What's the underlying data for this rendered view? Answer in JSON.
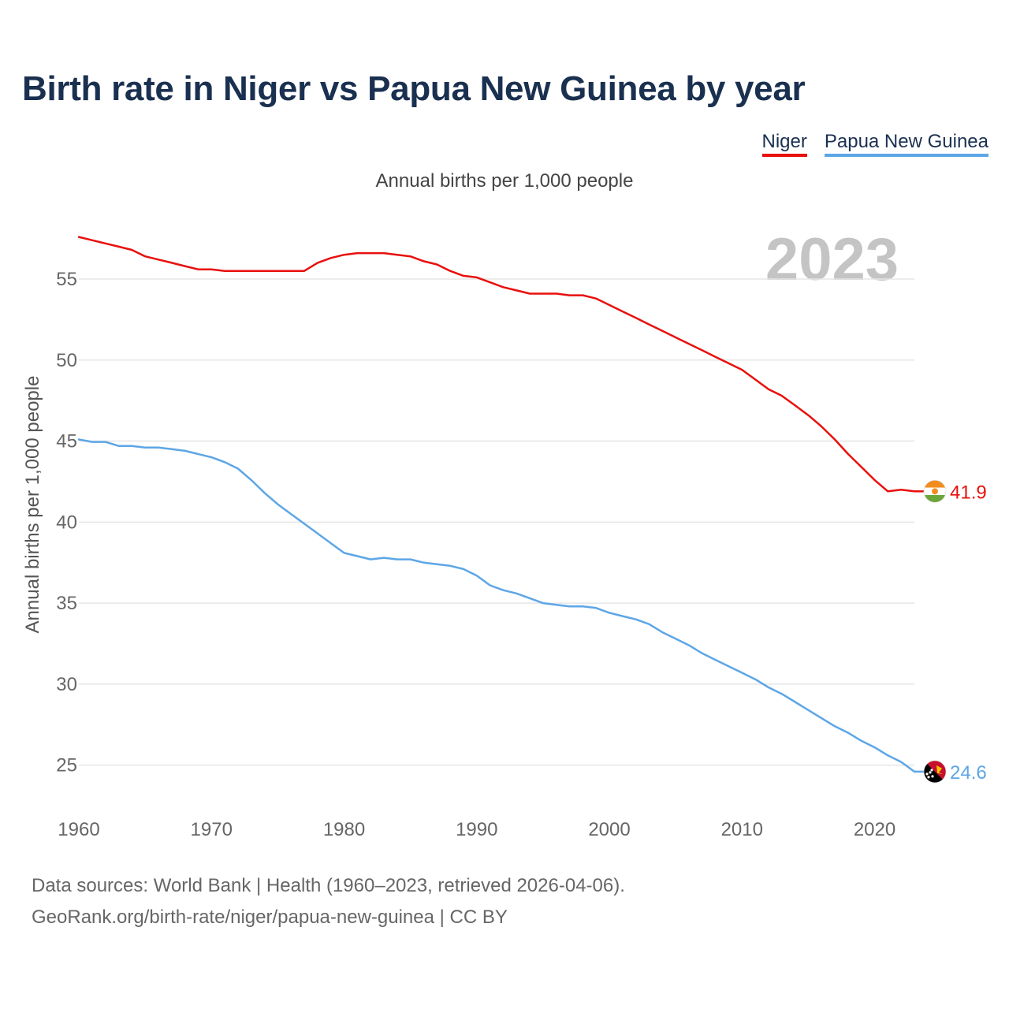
{
  "title": "Birth rate in Niger vs Papua New Guinea by year",
  "subtitle": "Annual births per 1,000 people",
  "year_label": "2023",
  "footer": {
    "line1": "Data sources: World Bank | Health (1960–2023, retrieved 2026-04-06).",
    "line2": "GeoRank.org/birth-rate/niger/papua-new-guinea | CC BY"
  },
  "colors": {
    "niger": "#e8100d",
    "png": "#5da6e6",
    "title": "#1a3050",
    "grid": "#e6e6e6"
  },
  "chart_data": {
    "type": "line",
    "title": "Birth rate in Niger vs Papua New Guinea by year",
    "ylabel": "Annual births per 1,000 people",
    "xlabel": "",
    "xlim": [
      1960,
      2023
    ],
    "ylim": [
      22.6,
      58.6
    ],
    "x_ticks": [
      1960,
      1970,
      1980,
      1990,
      2000,
      2010,
      2020
    ],
    "y_ticks": [
      25,
      30,
      35,
      40,
      45,
      50,
      55
    ],
    "legend_position": "top-right",
    "grid": true,
    "x": [
      1960,
      1961,
      1962,
      1963,
      1964,
      1965,
      1966,
      1967,
      1968,
      1969,
      1970,
      1971,
      1972,
      1973,
      1974,
      1975,
      1976,
      1977,
      1978,
      1979,
      1980,
      1981,
      1982,
      1983,
      1984,
      1985,
      1986,
      1987,
      1988,
      1989,
      1990,
      1991,
      1992,
      1993,
      1994,
      1995,
      1996,
      1997,
      1998,
      1999,
      2000,
      2001,
      2002,
      2003,
      2004,
      2005,
      2006,
      2007,
      2008,
      2009,
      2010,
      2011,
      2012,
      2013,
      2014,
      2015,
      2016,
      2017,
      2018,
      2019,
      2020,
      2021,
      2022,
      2023
    ],
    "series": [
      {
        "name": "Niger",
        "color": "#e8100d",
        "end_label": "41.9",
        "flag": "niger-flag",
        "values": [
          57.6,
          57.4,
          57.2,
          57.0,
          56.8,
          56.4,
          56.2,
          56.0,
          55.8,
          55.6,
          55.6,
          55.5,
          55.5,
          55.5,
          55.5,
          55.5,
          55.5,
          55.5,
          56.0,
          56.3,
          56.5,
          56.6,
          56.6,
          56.6,
          56.5,
          56.4,
          56.1,
          55.9,
          55.5,
          55.2,
          55.1,
          54.8,
          54.5,
          54.3,
          54.1,
          54.1,
          54.1,
          54.0,
          54.0,
          53.8,
          53.4,
          53.0,
          52.6,
          52.2,
          51.8,
          51.4,
          51.0,
          50.6,
          50.2,
          49.8,
          49.4,
          48.8,
          48.2,
          47.8,
          47.2,
          46.6,
          45.9,
          45.1,
          44.2,
          43.4,
          42.6,
          41.9,
          42.0,
          41.9
        ]
      },
      {
        "name": "Papua New Guinea",
        "color": "#5da6e6",
        "end_label": "24.6",
        "flag": "png-flag",
        "values": [
          45.1,
          44.95,
          44.95,
          44.7,
          44.7,
          44.6,
          44.6,
          44.5,
          44.4,
          44.2,
          44.0,
          43.7,
          43.3,
          42.6,
          41.8,
          41.1,
          40.5,
          39.9,
          39.3,
          38.7,
          38.1,
          37.9,
          37.7,
          37.8,
          37.7,
          37.7,
          37.5,
          37.4,
          37.3,
          37.1,
          36.7,
          36.1,
          35.8,
          35.6,
          35.3,
          35.0,
          34.9,
          34.8,
          34.8,
          34.7,
          34.4,
          34.2,
          34.0,
          33.7,
          33.2,
          32.8,
          32.4,
          31.9,
          31.5,
          31.1,
          30.7,
          30.3,
          29.8,
          29.4,
          28.9,
          28.4,
          27.9,
          27.4,
          27.0,
          26.5,
          26.1,
          25.6,
          25.2,
          24.6
        ]
      }
    ]
  }
}
